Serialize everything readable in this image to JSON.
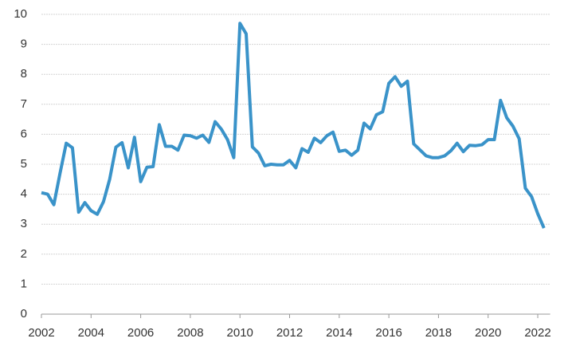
{
  "chart_data": {
    "type": "line",
    "x": [
      2002,
      2002.25,
      2002.5,
      2002.75,
      2003,
      2003.25,
      2003.5,
      2003.75,
      2004,
      2004.25,
      2004.5,
      2004.75,
      2005,
      2005.25,
      2005.5,
      2005.75,
      2006,
      2006.25,
      2006.5,
      2006.75,
      2007,
      2007.25,
      2007.5,
      2007.75,
      2008,
      2008.25,
      2008.5,
      2008.75,
      2009,
      2009.25,
      2009.5,
      2009.75,
      2010,
      2010.25,
      2010.5,
      2010.75,
      2011,
      2011.25,
      2011.5,
      2011.75,
      2012,
      2012.25,
      2012.5,
      2012.75,
      2013,
      2013.25,
      2013.5,
      2013.75,
      2014,
      2014.25,
      2014.5,
      2014.75,
      2015,
      2015.25,
      2015.5,
      2015.75,
      2016,
      2016.25,
      2016.5,
      2016.75,
      2017,
      2017.25,
      2017.5,
      2017.75,
      2018,
      2018.25,
      2018.5,
      2018.75,
      2019,
      2019.25,
      2019.5,
      2019.75,
      2020,
      2020.25,
      2020.5,
      2020.75,
      2021,
      2021.25,
      2021.5,
      2021.75,
      2022,
      2022.25
    ],
    "values": [
      4.05,
      4.0,
      3.65,
      4.7,
      5.7,
      5.55,
      3.4,
      3.72,
      3.45,
      3.33,
      3.75,
      4.5,
      5.57,
      5.72,
      4.88,
      5.9,
      4.42,
      4.9,
      4.92,
      6.32,
      5.6,
      5.6,
      5.47,
      5.97,
      5.95,
      5.87,
      5.97,
      5.73,
      6.42,
      6.17,
      5.82,
      5.22,
      9.7,
      9.35,
      5.58,
      5.37,
      4.95,
      5.0,
      4.98,
      4.98,
      5.13,
      4.88,
      5.52,
      5.4,
      5.87,
      5.72,
      5.95,
      6.07,
      5.43,
      5.47,
      5.3,
      5.47,
      6.37,
      6.18,
      6.65,
      6.75,
      7.7,
      7.92,
      7.6,
      7.77,
      5.68,
      5.48,
      5.28,
      5.22,
      5.22,
      5.28,
      5.45,
      5.7,
      5.42,
      5.63,
      5.62,
      5.65,
      5.82,
      5.82,
      7.13,
      6.55,
      6.27,
      5.85,
      4.2,
      3.92,
      3.35,
      2.87
    ],
    "color": "#3a93c9",
    "xlim": [
      2002,
      2022.5
    ],
    "xticks": [
      2002,
      2004,
      2006,
      2008,
      2010,
      2012,
      2014,
      2016,
      2018,
      2020,
      2022
    ],
    "ylim": [
      0,
      10
    ],
    "yticks": [
      0,
      1,
      2,
      3,
      4,
      5,
      6,
      7,
      8,
      9,
      10
    ],
    "grid": true
  }
}
